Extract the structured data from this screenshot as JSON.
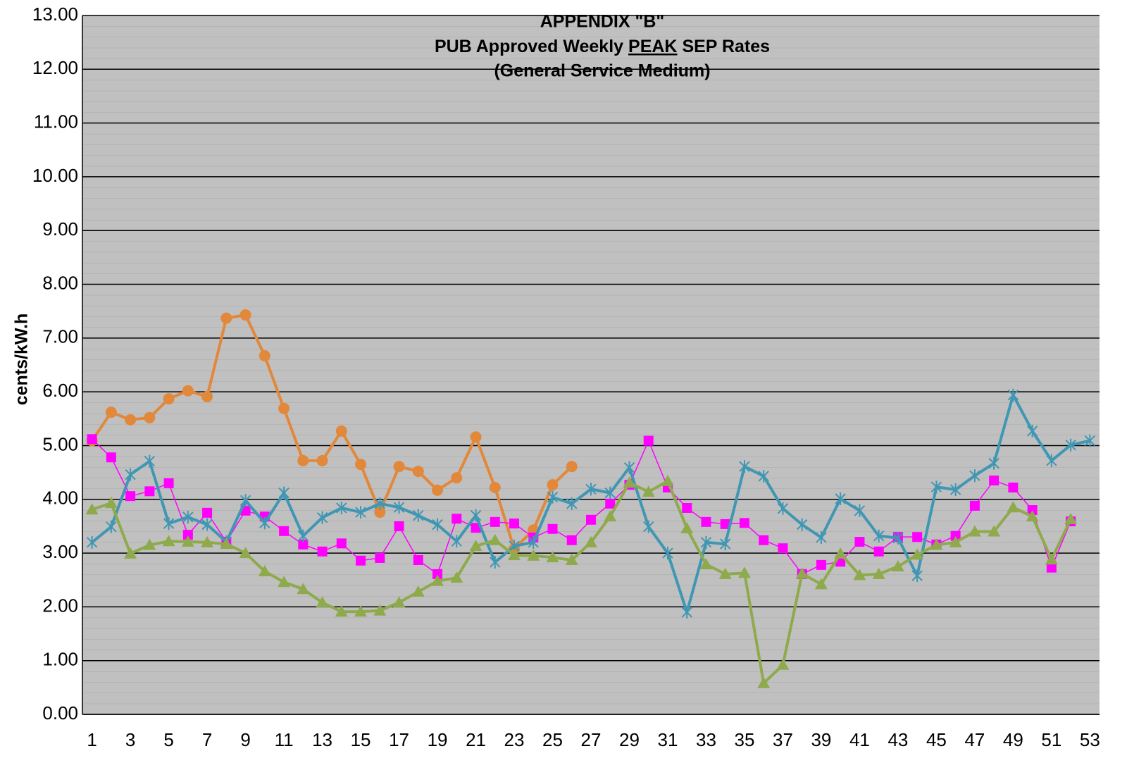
{
  "chart_data": {
    "type": "line",
    "title": {
      "line1": "APPENDIX \"B\"",
      "line2": [
        "PUB Approved Weekly",
        "PEAK",
        "SEP Rates"
      ],
      "line3": "(General Service Medium)"
    },
    "y_label": "cents/kW.h",
    "categories": [
      1,
      null,
      3,
      null,
      5,
      null,
      7,
      null,
      9,
      null,
      11,
      null,
      13,
      null,
      15,
      null,
      17,
      null,
      19,
      null,
      21,
      null,
      23,
      null,
      25,
      null,
      27,
      null,
      29,
      null,
      31,
      null,
      33,
      null,
      35,
      null,
      37,
      null,
      39,
      null,
      41,
      null,
      43,
      null,
      45,
      null,
      47,
      null,
      49,
      null,
      51,
      null,
      53
    ],
    "ylim": [
      0,
      13
    ],
    "yticks": [
      {
        "value": 0,
        "label": "0.00"
      },
      {
        "value": 1,
        "label": "1.00"
      },
      {
        "value": 2,
        "label": "2.00"
      },
      {
        "value": 3,
        "label": "3.00"
      },
      {
        "value": 4,
        "label": "4.00"
      },
      {
        "value": 5,
        "label": "5.00"
      },
      {
        "value": 6,
        "label": "6.00"
      },
      {
        "value": 7,
        "label": "7.00"
      },
      {
        "value": 8,
        "label": "8.00"
      },
      {
        "value": 9,
        "label": "9.00"
      },
      {
        "value": 10,
        "label": "10.00"
      },
      {
        "value": 11,
        "label": "11.00"
      },
      {
        "value": 12,
        "label": "12.00"
      },
      {
        "value": 13,
        "label": "13.00"
      }
    ],
    "grid": true,
    "minor_grid_step": 0.2,
    "background": "#c0c0c0",
    "series": [
      {
        "color": "#e2883a",
        "marker": "circle",
        "line_width": 4,
        "values": [
          5.09,
          5.62,
          5.48,
          5.52,
          5.87,
          6.02,
          5.91,
          7.37,
          7.43,
          6.67,
          5.69,
          4.72,
          4.72,
          5.27,
          4.65,
          3.76,
          4.61,
          4.52,
          4.17,
          4.4,
          5.16,
          4.22,
          3.08,
          3.43,
          4.27,
          4.61,
          null,
          null,
          null,
          null,
          null,
          null,
          null,
          null,
          null,
          null,
          null,
          null,
          null,
          null,
          null,
          null,
          null,
          null,
          null,
          null,
          null,
          null,
          null,
          null,
          null,
          null,
          null
        ]
      },
      {
        "color": "#ff00ff",
        "marker": "square",
        "line_width": 1.5,
        "values": [
          5.12,
          4.78,
          4.06,
          4.15,
          4.3,
          3.34,
          3.75,
          3.21,
          3.79,
          3.68,
          3.41,
          3.16,
          3.03,
          3.18,
          2.86,
          2.91,
          3.5,
          2.87,
          2.61,
          3.64,
          3.47,
          3.58,
          3.55,
          3.29,
          3.45,
          3.24,
          3.62,
          3.92,
          4.27,
          5.09,
          4.22,
          3.84,
          3.58,
          3.54,
          3.56,
          3.24,
          3.09,
          2.61,
          2.78,
          2.84,
          3.21,
          3.03,
          3.3,
          3.3,
          3.16,
          3.32,
          3.88,
          4.35,
          4.22,
          3.8,
          2.73,
          3.59,
          null
        ]
      },
      {
        "color": "#3f97b3",
        "marker": "asterisk",
        "line_width": 4,
        "values": [
          3.2,
          3.49,
          4.46,
          4.71,
          3.55,
          3.67,
          3.53,
          3.21,
          3.98,
          3.56,
          4.12,
          3.32,
          3.66,
          3.84,
          3.76,
          3.92,
          3.85,
          3.7,
          3.53,
          3.22,
          3.7,
          2.83,
          3.13,
          3.2,
          4.04,
          3.92,
          4.19,
          4.12,
          4.59,
          3.49,
          3.0,
          1.9,
          3.2,
          3.17,
          4.61,
          4.43,
          3.83,
          3.53,
          3.29,
          4.01,
          3.79,
          3.32,
          3.28,
          2.58,
          4.23,
          4.18,
          4.44,
          4.67,
          5.94,
          5.27,
          4.72,
          5.01,
          5.09
        ]
      },
      {
        "color": "#8faa4c",
        "marker": "triangle",
        "line_width": 4,
        "values": [
          3.81,
          3.93,
          2.99,
          3.15,
          3.22,
          3.21,
          3.2,
          3.17,
          3.0,
          2.66,
          2.46,
          2.33,
          2.08,
          1.91,
          1.91,
          1.93,
          2.08,
          2.28,
          2.48,
          2.54,
          3.13,
          3.24,
          2.96,
          2.95,
          2.92,
          2.87,
          3.2,
          3.68,
          4.31,
          4.14,
          4.34,
          3.46,
          2.79,
          2.61,
          2.63,
          0.58,
          0.92,
          2.62,
          2.42,
          2.99,
          2.59,
          2.61,
          2.75,
          2.97,
          3.15,
          3.2,
          3.4,
          3.4,
          3.85,
          3.68,
          2.88,
          3.63,
          null
        ]
      }
    ]
  }
}
